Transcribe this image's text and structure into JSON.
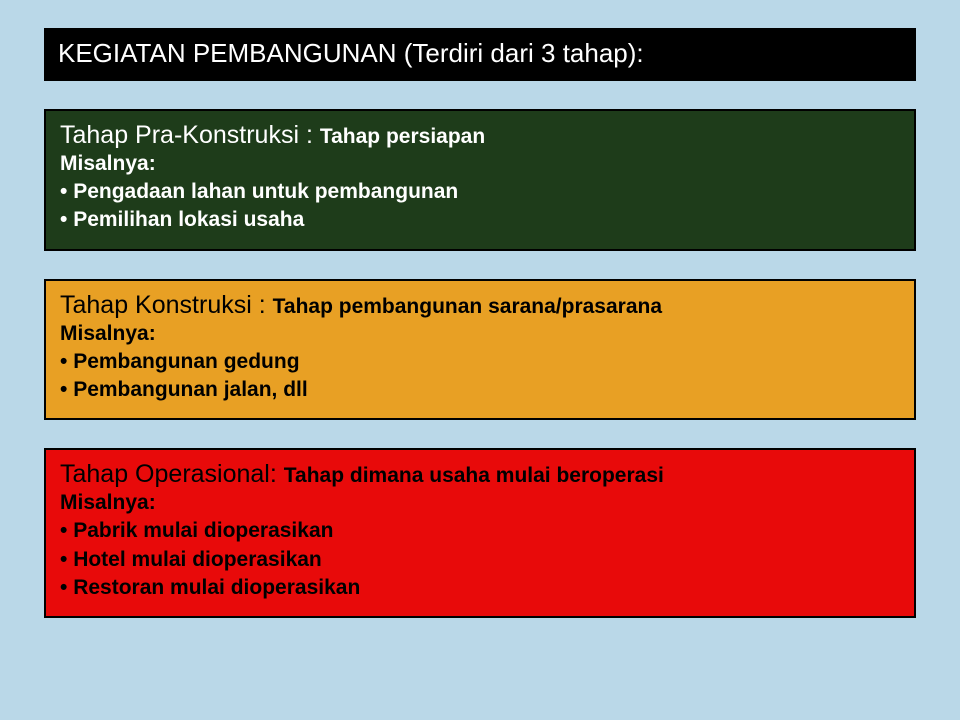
{
  "title": "KEGIATAN PEMBANGUNAN (Terdiri dari 3 tahap):",
  "stages": [
    {
      "heading": "Tahap Pra-Konstruksi : ",
      "sub": "Tahap persiapan",
      "eg": "Misalnya:",
      "items": [
        "Pengadaan lahan untuk pembangunan",
        "Pemilihan lokasi usaha"
      ],
      "bg": "#1e3c1a",
      "fg": "#ffffff"
    },
    {
      "heading": "Tahap Konstruksi :  ",
      "sub": "Tahap pembangunan sarana/prasarana",
      "eg": "Misalnya:",
      "items": [
        "Pembangunan gedung",
        "Pembangunan jalan, dll"
      ],
      "bg": "#e8a024",
      "fg": "#000000"
    },
    {
      "heading": "Tahap Operasional: ",
      "sub": "Tahap dimana usaha mulai beroperasi",
      "eg": "Misalnya:",
      "items": [
        "Pabrik mulai dioperasikan",
        "Hotel mulai dioperasikan",
        "Restoran mulai dioperasikan"
      ],
      "bg": "#e80a0a",
      "fg": "#000000"
    }
  ],
  "colors": {
    "page_bg": "#bad8e8",
    "title_bg": "#000000",
    "title_fg": "#ffffff",
    "border": "#000000"
  }
}
